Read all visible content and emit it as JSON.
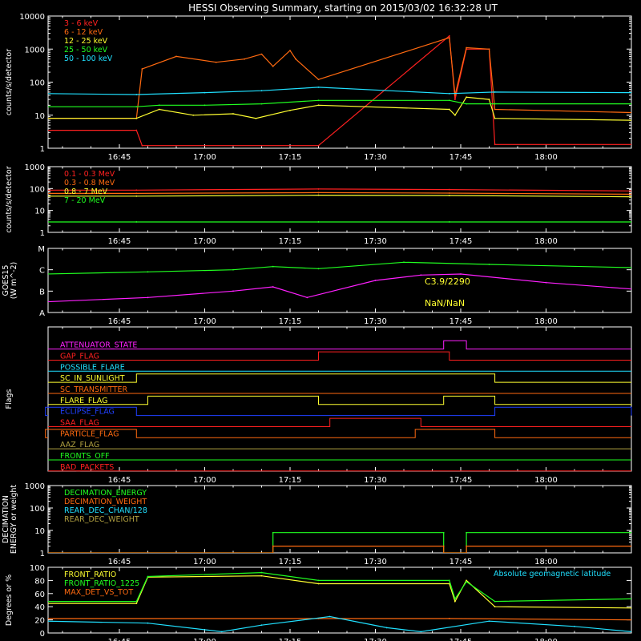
{
  "title": "HESSI Observing Summary, starting on 2015/03/02 16:32:28 UT",
  "colors": {
    "red": "#ff2020",
    "orange": "#ff6a10",
    "yellow": "#ffff30",
    "green": "#20ff20",
    "cyan": "#20e0ff",
    "magenta": "#ff20ff",
    "blue": "#2040ff",
    "olive": "#b0a040",
    "white": "#ffffff"
  },
  "time_axis": {
    "start": "16:32:28",
    "end": "18:15",
    "ticks": [
      "16:45",
      "17:00",
      "17:15",
      "17:30",
      "17:45",
      "18:00"
    ]
  },
  "chart_data": [
    {
      "id": "hxr",
      "type": "line",
      "ylabel": "counts/s/detector",
      "yscale": "log",
      "ylim": [
        1,
        10000
      ],
      "yticks": [
        "1",
        "10",
        "100",
        "1000",
        "10000"
      ],
      "legend_placement": "top-left",
      "gaps": [
        [
          "17:20",
          "17:43"
        ]
      ],
      "series": [
        {
          "name": "3 - 6 keV",
          "color": "red",
          "points": [
            [
              "16:32",
              "3.5"
            ],
            [
              "16:48",
              "3.5"
            ],
            [
              "16:49",
              "1.2"
            ],
            [
              "17:20",
              "1.2"
            ],
            [
              "17:43",
              "2500"
            ],
            [
              "17:44",
              "30"
            ],
            [
              "17:46",
              "1000"
            ],
            [
              "17:50",
              "1000"
            ],
            [
              "17:51",
              "1.3"
            ],
            [
              "18:15",
              "1.3"
            ]
          ]
        },
        {
          "name": "6 - 12 keV",
          "color": "orange",
          "points": [
            [
              "16:32",
              "8"
            ],
            [
              "16:48",
              "8"
            ],
            [
              "16:49",
              "250"
            ],
            [
              "16:55",
              "600"
            ],
            [
              "17:02",
              "400"
            ],
            [
              "17:07",
              "500"
            ],
            [
              "17:10",
              "700"
            ],
            [
              "17:12",
              "300"
            ],
            [
              "17:15",
              "900"
            ],
            [
              "17:16",
              "500"
            ],
            [
              "17:20",
              "120"
            ],
            [
              "17:43",
              "2200"
            ],
            [
              "17:44",
              "40"
            ],
            [
              "17:46",
              "1100"
            ],
            [
              "17:50",
              "1000"
            ],
            [
              "17:51",
              "15"
            ],
            [
              "18:15",
              "12"
            ]
          ]
        },
        {
          "name": "12 - 25 keV",
          "color": "yellow",
          "points": [
            [
              "16:32",
              "8"
            ],
            [
              "16:48",
              "8"
            ],
            [
              "16:52",
              "15"
            ],
            [
              "16:58",
              "10"
            ],
            [
              "17:05",
              "11"
            ],
            [
              "17:09",
              "8"
            ],
            [
              "17:15",
              "14"
            ],
            [
              "17:20",
              "20"
            ],
            [
              "17:43",
              "15"
            ],
            [
              "17:44",
              "10"
            ],
            [
              "17:46",
              "35"
            ],
            [
              "17:50",
              "30"
            ],
            [
              "17:51",
              "8"
            ],
            [
              "18:15",
              "7"
            ]
          ]
        },
        {
          "name": "25 - 50 keV",
          "color": "green",
          "points": [
            [
              "16:32",
              "18"
            ],
            [
              "16:48",
              "18"
            ],
            [
              "16:52",
              "20"
            ],
            [
              "17:00",
              "20"
            ],
            [
              "17:10",
              "22"
            ],
            [
              "17:20",
              "28"
            ],
            [
              "17:43",
              "28"
            ],
            [
              "17:46",
              "22"
            ],
            [
              "17:51",
              "22"
            ],
            [
              "18:15",
              "22"
            ]
          ]
        },
        {
          "name": "50 - 100 keV",
          "color": "cyan",
          "points": [
            [
              "16:32",
              "45"
            ],
            [
              "16:48",
              "42"
            ],
            [
              "17:00",
              "48"
            ],
            [
              "17:10",
              "55"
            ],
            [
              "17:20",
              "70"
            ],
            [
              "17:43",
              "45"
            ],
            [
              "17:51",
              "50"
            ],
            [
              "18:15",
              "48"
            ]
          ]
        }
      ]
    },
    {
      "id": "gamma",
      "type": "line",
      "ylabel": "counts/s/detector",
      "yscale": "log",
      "ylim": [
        1,
        1000
      ],
      "yticks": [
        "1",
        "10",
        "100",
        "1000"
      ],
      "legend_placement": "top-left",
      "gaps": [
        [
          "17:20",
          "17:43"
        ]
      ],
      "series": [
        {
          "name": "0.1 - 0.3 MeV",
          "color": "red",
          "points": [
            [
              "16:32",
              "85"
            ],
            [
              "16:48",
              "85"
            ],
            [
              "17:20",
              "95"
            ],
            [
              "17:43",
              "90"
            ],
            [
              "18:15",
              "78"
            ]
          ]
        },
        {
          "name": "0.3 - 0.8 MeV",
          "color": "orange",
          "points": [
            [
              "16:32",
              "60"
            ],
            [
              "16:48",
              "60"
            ],
            [
              "17:20",
              "65"
            ],
            [
              "17:43",
              "62"
            ],
            [
              "18:15",
              "55"
            ]
          ]
        },
        {
          "name": "0.8 - 7 MeV",
          "color": "yellow",
          "points": [
            [
              "16:32",
              "45"
            ],
            [
              "16:48",
              "45"
            ],
            [
              "17:20",
              "50"
            ],
            [
              "17:43",
              "48"
            ],
            [
              "18:15",
              "42"
            ]
          ]
        },
        {
          "name": "7 - 20 MeV",
          "color": "green",
          "points": [
            [
              "16:32",
              "3"
            ],
            [
              "16:48",
              "3"
            ],
            [
              "17:20",
              "3"
            ],
            [
              "17:43",
              "3"
            ],
            [
              "18:15",
              "3"
            ]
          ]
        }
      ]
    },
    {
      "id": "goes",
      "type": "line",
      "ylabel": "GOES15 (W m^-2)",
      "yscale": "log",
      "ylim": [
        "A",
        "M"
      ],
      "yticks": [
        "A",
        "B",
        "C",
        "M"
      ],
      "annotations": [
        "C3.9/2290",
        "NaN/NaN"
      ],
      "series": [
        {
          "color": "green",
          "points": [
            [
              "16:32",
              "C-0.2"
            ],
            [
              "16:50",
              "C-0.1"
            ],
            [
              "17:05",
              "C"
            ],
            [
              "17:12",
              "C+0.15"
            ],
            [
              "17:20",
              "C+0.05"
            ],
            [
              "17:35",
              "C+0.35"
            ],
            [
              "17:50",
              "C+0.25"
            ],
            [
              "18:15",
              "C+0.1"
            ]
          ]
        },
        {
          "color": "magenta",
          "points": [
            [
              "16:32",
              "B-0.5"
            ],
            [
              "16:50",
              "B-0.3"
            ],
            [
              "17:05",
              "B"
            ],
            [
              "17:12",
              "B+0.2"
            ],
            [
              "17:18",
              "B-0.3"
            ],
            [
              "17:30",
              "B+0.5"
            ],
            [
              "17:38",
              "B+0.75"
            ],
            [
              "17:45",
              "B+0.8"
            ],
            [
              "18:00",
              "B+0.4"
            ],
            [
              "18:15",
              "B+0.1"
            ]
          ]
        }
      ]
    },
    {
      "id": "flags",
      "type": "line",
      "ylabel": "Flags",
      "rows": [
        {
          "name": "ATTENUATOR_STATE",
          "color": "magenta",
          "on": [
            [
              "17:42",
              "17:46"
            ]
          ]
        },
        {
          "name": "GAP_FLAG",
          "color": "red",
          "on": [
            [
              "17:20",
              "17:43"
            ]
          ]
        },
        {
          "name": "POSSIBLE_FLARE",
          "color": "cyan",
          "on": []
        },
        {
          "name": "SC_IN_SUNLIGHT",
          "color": "yellow",
          "on": [
            [
              "16:48",
              "17:51"
            ]
          ]
        },
        {
          "name": "SC_TRANSMITTER",
          "color": "orange",
          "on": []
        },
        {
          "name": "FLARE_FLAG",
          "color": "yellow",
          "on": [
            [
              "16:50",
              "17:20"
            ],
            [
              "17:42",
              "17:51"
            ]
          ]
        },
        {
          "name": "ECLIPSE_FLAG",
          "color": "blue",
          "on": [
            [
              "16:32",
              "16:48"
            ],
            [
              "17:51",
              "18:15"
            ]
          ]
        },
        {
          "name": "SAA_FLAG",
          "color": "red",
          "on": [
            [
              "17:22",
              "17:38"
            ]
          ]
        },
        {
          "name": "PARTICLE_FLAG",
          "color": "orange",
          "on": [
            [
              "16:32",
              "16:48"
            ],
            [
              "17:37",
              "17:51"
            ]
          ]
        },
        {
          "name": "AAZ_FLAG",
          "color": "olive",
          "on": []
        },
        {
          "name": "FRONTS_OFF",
          "color": "green",
          "on": []
        },
        {
          "name": "BAD_PACKETS",
          "color": "red",
          "on": []
        }
      ]
    },
    {
      "id": "decimation",
      "type": "line",
      "ylabel": "DECIMATION ENERGY or weight",
      "yscale": "log",
      "ylim": [
        1,
        1000
      ],
      "yticks": [
        "1",
        "10",
        "100",
        "1000"
      ],
      "legend_placement": "top-left",
      "series": [
        {
          "name": "DECIMATION_ENERGY",
          "color": "green",
          "points": [
            [
              "16:32",
              "1"
            ],
            [
              "17:12",
              "1"
            ],
            [
              "17:12",
              "8"
            ],
            [
              "17:42",
              "8"
            ],
            [
              "17:42",
              "1"
            ],
            [
              "17:46",
              "1"
            ],
            [
              "17:46",
              "8"
            ],
            [
              "18:15",
              "8"
            ]
          ]
        },
        {
          "name": "DECIMATION_WEIGHT",
          "color": "orange",
          "points": [
            [
              "16:32",
              "1"
            ],
            [
              "17:12",
              "1"
            ],
            [
              "17:12",
              "2"
            ],
            [
              "17:42",
              "2"
            ],
            [
              "17:42",
              "1"
            ],
            [
              "17:46",
              "1"
            ],
            [
              "17:46",
              "2"
            ],
            [
              "18:15",
              "2"
            ]
          ]
        },
        {
          "name": "REAR_DEC_CHAN/128",
          "color": "cyan",
          "points": []
        },
        {
          "name": "REAR_DEC_WEIGHT",
          "color": "olive",
          "points": []
        }
      ]
    },
    {
      "id": "ratios",
      "type": "line",
      "ylabel": "Degrees or %",
      "ylim": [
        0,
        100
      ],
      "yticks": [
        "0",
        "20",
        "40",
        "60",
        "80",
        "100"
      ],
      "legend_placement": "top-left",
      "gaps": [
        [
          "17:20",
          "17:43"
        ]
      ],
      "annotations": [
        "Absolute geomagnetic latitude"
      ],
      "series": [
        {
          "name": "FRONT_RATIO",
          "color": "yellow",
          "points": [
            [
              "16:32",
              "45"
            ],
            [
              "16:48",
              "45"
            ],
            [
              "16:50",
              "85"
            ],
            [
              "17:10",
              "87"
            ],
            [
              "17:20",
              "75"
            ],
            [
              "17:43",
              "75"
            ],
            [
              "17:44",
              "48"
            ],
            [
              "17:46",
              "80"
            ],
            [
              "17:51",
              "40"
            ],
            [
              "18:15",
              "38"
            ]
          ]
        },
        {
          "name": "FRONT_RATIO_1225",
          "color": "green",
          "points": [
            [
              "16:32",
              "48"
            ],
            [
              "16:48",
              "48"
            ],
            [
              "16:50",
              "86"
            ],
            [
              "17:10",
              "92"
            ],
            [
              "17:20",
              "80"
            ],
            [
              "17:43",
              "80"
            ],
            [
              "17:44",
              "52"
            ],
            [
              "17:46",
              "78"
            ],
            [
              "17:51",
              "48"
            ],
            [
              "18:15",
              "52"
            ]
          ]
        },
        {
          "name": "MAX_DET_VS_TOT",
          "color": "orange",
          "points": [
            [
              "16:32",
              "22"
            ],
            [
              "17:20",
              "22"
            ],
            [
              "17:43",
              "22"
            ],
            [
              "18:15",
              "20"
            ]
          ]
        },
        {
          "name": "Absolute geomagnetic latitude",
          "color": "cyan",
          "points": [
            [
              "16:32",
              "18"
            ],
            [
              "16:50",
              "15"
            ],
            [
              "17:03",
              "2"
            ],
            [
              "17:10",
              "12"
            ],
            [
              "17:22",
              "25"
            ],
            [
              "17:32",
              "8"
            ],
            [
              "17:38",
              "2"
            ],
            [
              "17:50",
              "18"
            ],
            [
              "18:05",
              "10"
            ],
            [
              "18:15",
              "2"
            ]
          ]
        }
      ]
    }
  ]
}
